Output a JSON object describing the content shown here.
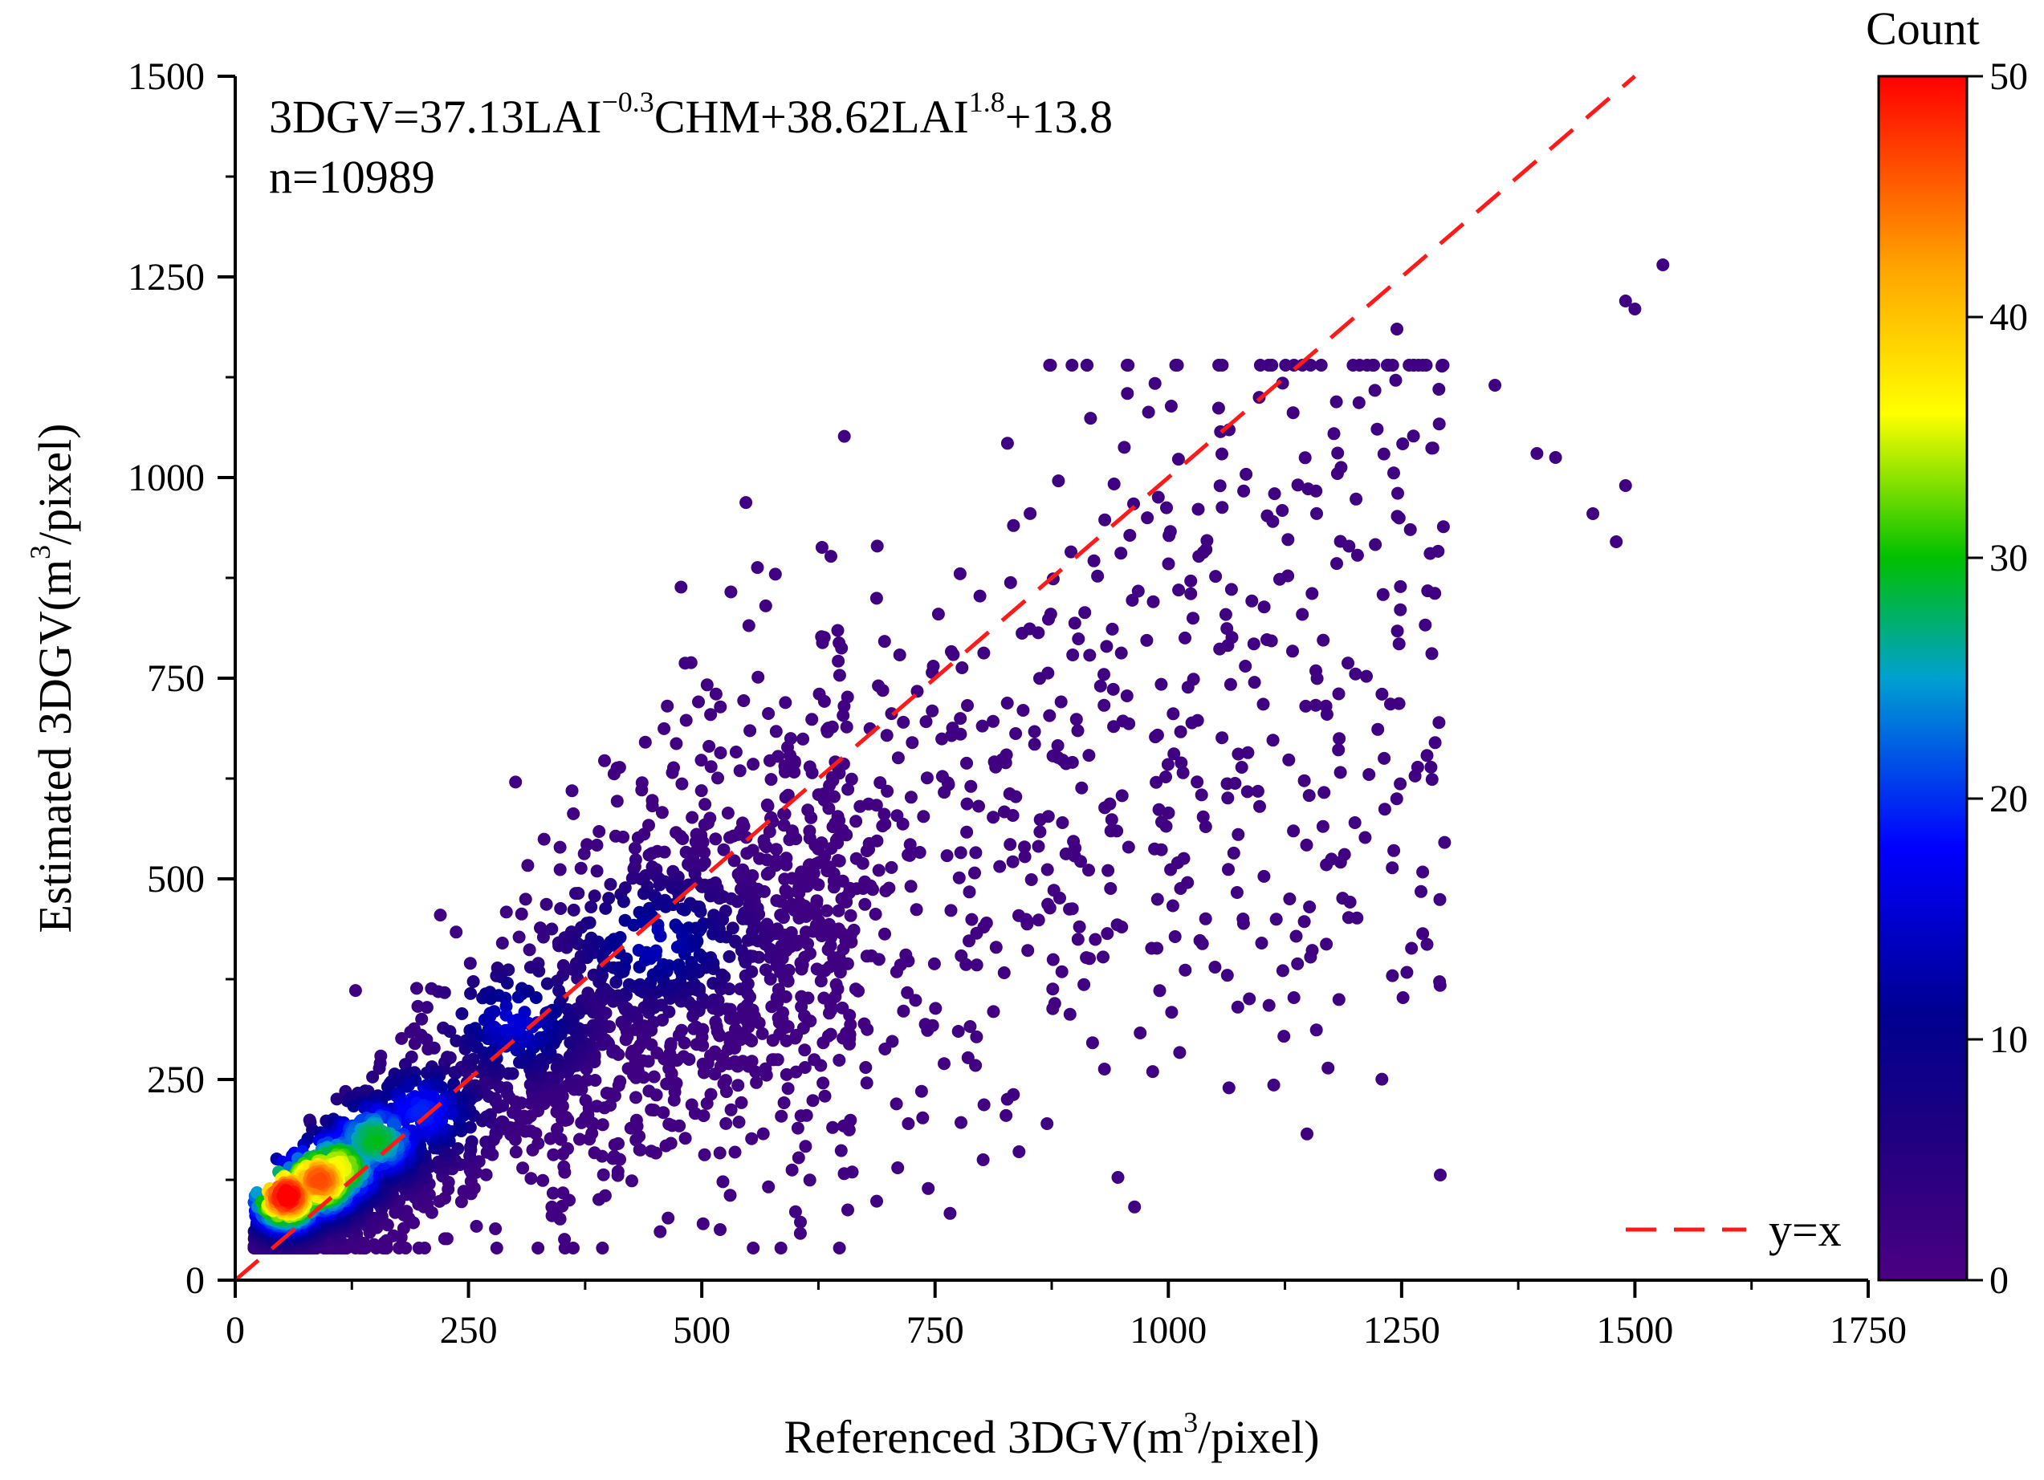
{
  "chart_data": {
    "type": "scatter",
    "subtype": "density-scatter",
    "xlabel": {
      "main": "Referenced 3DGV(m",
      "sup": "3",
      "tail": "/pixel)"
    },
    "ylabel": {
      "main": "Estimated 3DGV(m",
      "sup": "3",
      "tail": "/pixel)"
    },
    "xlim": [
      0,
      1750
    ],
    "ylim": [
      0,
      1500
    ],
    "x_ticks": [
      0,
      250,
      500,
      750,
      1000,
      1250,
      1500,
      1750
    ],
    "y_ticks": [
      0,
      250,
      500,
      750,
      1000,
      1250,
      1500
    ],
    "x_tick_labels": [
      "0",
      "250",
      "500",
      "750",
      "1000",
      "1250",
      "1500",
      "1750"
    ],
    "y_tick_labels": [
      "0",
      "250",
      "500",
      "750",
      "1000",
      "1250",
      "1500"
    ],
    "equation": {
      "p1": "3DGV=37.13LAI",
      "e1": "−0.3",
      "p2": "CHM+38.62LAI",
      "e2": "1.8",
      "p3": "+13.8"
    },
    "n_text": "n=10989",
    "n": 10989,
    "reference_line": {
      "label": "y=x",
      "x": [
        0,
        1500
      ],
      "y": [
        0,
        1500
      ],
      "color": "#ff1a1a",
      "style": "dashed"
    },
    "legend_position": "bottom-right",
    "colorbar": {
      "title": "Count",
      "range": [
        0,
        50
      ],
      "ticks": [
        0,
        10,
        20,
        30,
        40,
        50
      ],
      "tick_labels": [
        "0",
        "10",
        "20",
        "30",
        "40",
        "50"
      ],
      "colors": [
        "#4b0082",
        "#1a0080",
        "#0000ff",
        "#00c000",
        "#ffff00",
        "#ffa500",
        "#ff0000"
      ]
    },
    "point_color_low": "#4b0082",
    "high_density_clusters": [
      {
        "x": 55,
        "y": 105,
        "count": 50
      },
      {
        "x": 90,
        "y": 125,
        "count": 45
      },
      {
        "x": 110,
        "y": 140,
        "count": 35
      },
      {
        "x": 150,
        "y": 175,
        "count": 28
      },
      {
        "x": 200,
        "y": 210,
        "count": 18
      },
      {
        "x": 300,
        "y": 320,
        "count": 14
      },
      {
        "x": 450,
        "y": 420,
        "count": 12
      }
    ],
    "outliers": [
      {
        "x": 1530,
        "y": 1265
      },
      {
        "x": 1490,
        "y": 1220
      },
      {
        "x": 1500,
        "y": 1210
      },
      {
        "x": 1245,
        "y": 1185
      },
      {
        "x": 1350,
        "y": 1115
      },
      {
        "x": 1290,
        "y": 1110
      },
      {
        "x": 1415,
        "y": 1025
      },
      {
        "x": 1455,
        "y": 955
      },
      {
        "x": 1480,
        "y": 920
      },
      {
        "x": 1490,
        "y": 990
      },
      {
        "x": 1395,
        "y": 1030
      },
      {
        "x": 1215,
        "y": 630
      },
      {
        "x": 1200,
        "y": 570
      },
      {
        "x": 1170,
        "y": 705
      },
      {
        "x": 1130,
        "y": 475
      },
      {
        "x": 1100,
        "y": 420
      },
      {
        "x": 1050,
        "y": 390
      },
      {
        "x": 840,
        "y": 160
      },
      {
        "x": 870,
        "y": 195
      },
      {
        "x": 710,
        "y": 140
      },
      {
        "x": 1040,
        "y": 565
      },
      {
        "x": 1010,
        "y": 520
      },
      {
        "x": 950,
        "y": 440
      },
      {
        "x": 1080,
        "y": 450
      }
    ]
  }
}
